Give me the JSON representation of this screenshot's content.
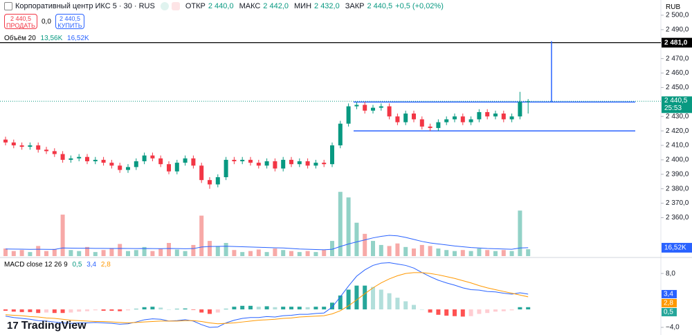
{
  "header": {
    "symbol": "Корпоративный центр ИКС 5 · 30 · RUS",
    "ohlc": [
      {
        "label": "ОТКР",
        "value": "2 440,0"
      },
      {
        "label": "МАКС",
        "value": "2 442,0"
      },
      {
        "label": "МИН",
        "value": "2 432,0"
      },
      {
        "label": "ЗАКР",
        "value": "2 440,5"
      }
    ],
    "change": "+0,5 (+0,02%)",
    "currency": "RUB"
  },
  "trade": {
    "sell_price": "2 440,5",
    "sell_label": "ПРОДАТЬ",
    "spread": "0,0",
    "buy_price": "2 440,5",
    "buy_label": "КУПИТЬ"
  },
  "branding": "TradingView",
  "chart_data": [
    {
      "type": "candlestick",
      "up_color": "#089981",
      "down_color": "#f23645",
      "open": [
        2414,
        2412,
        2410,
        2409,
        2410,
        2407,
        2406,
        2404,
        2400,
        2401,
        2402,
        2399,
        2400,
        2398,
        2396,
        2393,
        2395,
        2399,
        2403,
        2401,
        2397,
        2392,
        2398,
        2401,
        2396,
        2386,
        2383,
        2388,
        2400,
        2399,
        2400,
        2398,
        2396,
        2399,
        2394,
        2400,
        2397,
        2399,
        2396,
        2398,
        2397,
        2410,
        2425,
        2437,
        2438,
        2434,
        2436,
        2437,
        2430,
        2426,
        2432,
        2428,
        2423,
        2422,
        2426,
        2428,
        2430,
        2426,
        2428,
        2433,
        2430,
        2432,
        2428,
        2430,
        2440
      ],
      "high": [
        2416,
        2414,
        2412,
        2412,
        2412,
        2409,
        2408,
        2406,
        2403,
        2404,
        2404,
        2402,
        2402,
        2400,
        2398,
        2397,
        2401,
        2405,
        2405,
        2403,
        2399,
        2400,
        2403,
        2403,
        2398,
        2388,
        2390,
        2402,
        2402,
        2402,
        2402,
        2400,
        2401,
        2401,
        2402,
        2402,
        2401,
        2401,
        2400,
        2400,
        2412,
        2427,
        2439,
        2440,
        2440,
        2438,
        2439,
        2439,
        2432,
        2434,
        2434,
        2430,
        2425,
        2428,
        2430,
        2432,
        2432,
        2430,
        2435,
        2435,
        2434,
        2434,
        2432,
        2447,
        2442
      ],
      "low": [
        2410,
        2408,
        2407,
        2407,
        2405,
        2404,
        2402,
        2398,
        2398,
        2399,
        2397,
        2397,
        2396,
        2394,
        2391,
        2391,
        2393,
        2397,
        2399,
        2395,
        2390,
        2390,
        2396,
        2394,
        2384,
        2380,
        2381,
        2386,
        2397,
        2397,
        2396,
        2394,
        2394,
        2392,
        2392,
        2395,
        2395,
        2394,
        2394,
        2395,
        2395,
        2408,
        2423,
        2435,
        2432,
        2432,
        2434,
        2428,
        2424,
        2424,
        2426,
        2421,
        2420,
        2420,
        2424,
        2426,
        2424,
        2424,
        2426,
        2428,
        2428,
        2426,
        2426,
        2428,
        2432
      ],
      "close": [
        2412,
        2410,
        2409,
        2410,
        2407,
        2406,
        2404,
        2400,
        2401,
        2402,
        2399,
        2400,
        2398,
        2396,
        2393,
        2395,
        2399,
        2403,
        2401,
        2397,
        2392,
        2398,
        2401,
        2396,
        2386,
        2383,
        2388,
        2400,
        2399,
        2400,
        2398,
        2396,
        2399,
        2394,
        2400,
        2397,
        2399,
        2396,
        2398,
        2397,
        2410,
        2425,
        2437,
        2438,
        2434,
        2436,
        2437,
        2430,
        2426,
        2432,
        2428,
        2423,
        2422,
        2426,
        2428,
        2430,
        2426,
        2428,
        2433,
        2430,
        2432,
        2428,
        2430,
        2440,
        2440.5
      ],
      "ylim": [
        2334.4,
        2510.5
      ],
      "yticks": [
        {
          "value": 2500,
          "label": "2 500,0"
        },
        {
          "value": 2490,
          "label": "2 490,0"
        },
        {
          "value": 2470,
          "label": "2 470,0"
        },
        {
          "value": 2460,
          "label": "2 460,0"
        },
        {
          "value": 2450,
          "label": "2 450,0"
        },
        {
          "value": 2430,
          "label": "2 430,0"
        },
        {
          "value": 2420,
          "label": "2 420,0"
        },
        {
          "value": 2410,
          "label": "2 410,0"
        },
        {
          "value": 2400,
          "label": "2 400,0"
        },
        {
          "value": 2390,
          "label": "2 390,0"
        },
        {
          "value": 2380,
          "label": "2 380,0"
        },
        {
          "value": 2370,
          "label": "2 370,0"
        },
        {
          "value": 2360,
          "label": "2 360,0"
        }
      ],
      "price_line": {
        "value": 2440.5,
        "label": "2 440,5",
        "timer": "25:53"
      },
      "horizontal_line": {
        "value": 2481,
        "label": "2 481,0",
        "color": "#000000"
      },
      "trend_lines": [
        2440,
        2420
      ],
      "vertical_line": [
        2482,
        2440
      ],
      "drawing_color": "#2962ff"
    },
    {
      "type": "bar",
      "title": "Объём 20",
      "value_label": "13,56K",
      "ma_label": "16,52K",
      "ma_color": "#2962ff",
      "up_color": "#92d2c7",
      "down_color": "#f7a9a7",
      "values": [
        15000,
        10000,
        12000,
        8000,
        20000,
        10000,
        14000,
        82000,
        12000,
        10000,
        18000,
        8000,
        12000,
        16000,
        24000,
        10000,
        12000,
        18000,
        10000,
        15000,
        26000,
        13000,
        10000,
        22000,
        80000,
        30000,
        20000,
        26000,
        12000,
        8000,
        10000,
        13000,
        8000,
        15000,
        12000,
        10000,
        8000,
        10000,
        8000,
        12000,
        30000,
        127000,
        116000,
        66000,
        44000,
        30000,
        22000,
        20000,
        25000,
        18000,
        15000,
        22000,
        20000,
        15000,
        12000,
        10000,
        12000,
        10000,
        15000,
        12000,
        10000,
        12000,
        10000,
        90000,
        13560
      ],
      "ma": [
        14000,
        13800,
        13600,
        13400,
        13500,
        13300,
        13200,
        16000,
        15800,
        15600,
        15500,
        15300,
        15200,
        15100,
        15300,
        15000,
        14800,
        15000,
        14800,
        14700,
        15000,
        14800,
        14500,
        14800,
        18000,
        19000,
        19200,
        19500,
        19000,
        18500,
        18000,
        17500,
        17000,
        16500,
        16000,
        15000,
        14000,
        13500,
        13000,
        12500,
        13500,
        19000,
        24000,
        28000,
        32000,
        36000,
        39000,
        41000,
        40000,
        37000,
        33000,
        29000,
        26000,
        24000,
        22000,
        20000,
        18500,
        17000,
        16000,
        15000,
        14500,
        14000,
        13500,
        16000,
        16520
      ],
      "ylim": [
        0,
        130000
      ]
    },
    {
      "type": "macd",
      "title": "MACD close 12 26 9",
      "hist_label": "0,5",
      "macd_label": "3,4",
      "signal_label": "2,8",
      "macd_color": "#2962ff",
      "signal_color": "#ff9800",
      "histogram": [
        -0.3,
        -0.5,
        -0.6,
        -0.6,
        -0.8,
        -0.7,
        -0.8,
        -0.8,
        -0.7,
        -0.5,
        -0.4,
        -0.2,
        -0.3,
        -0.3,
        -0.4,
        -0.2,
        0.1,
        0.5,
        0.6,
        0.4,
        0,
        0.1,
        0.2,
        -0.1,
        -0.7,
        -1.0,
        -0.7,
        0.1,
        0.6,
        0.8,
        0.8,
        0.6,
        0.7,
        0.5,
        0.6,
        0.6,
        0.6,
        0.5,
        0.6,
        0.6,
        1.5,
        3.1,
        4.4,
        5.3,
        5.3,
        5.0,
        4.4,
        3.6,
        2.6,
        1.8,
        1.0,
        0,
        -0.7,
        -1.2,
        -1.4,
        -1.5,
        -1.6,
        -1.5,
        -1.0,
        -0.8,
        -0.5,
        -0.4,
        -0.2,
        0.5,
        0.5
      ],
      "macd": [
        -1.5,
        -1.8,
        -2.0,
        -2.2,
        -2.5,
        -2.6,
        -2.8,
        -3.0,
        -3.1,
        -3.0,
        -3.0,
        -2.9,
        -3.0,
        -3.1,
        -3.3,
        -3.2,
        -2.8,
        -2.3,
        -2.1,
        -2.2,
        -2.6,
        -2.5,
        -2.3,
        -2.6,
        -3.4,
        -4.0,
        -3.9,
        -3.0,
        -2.4,
        -2.0,
        -1.8,
        -1.8,
        -1.6,
        -1.7,
        -1.4,
        -1.3,
        -1.1,
        -1.1,
        -0.9,
        -0.8,
        0.5,
        2.8,
        5.2,
        7.4,
        8.8,
        9.8,
        10.3,
        10.4,
        10.1,
        9.8,
        9.2,
        8.2,
        7.3,
        6.5,
        5.9,
        5.4,
        4.8,
        4.4,
        4.3,
        4.0,
        3.9,
        3.6,
        3.4,
        3.7,
        3.4
      ],
      "signal": [
        -1.2,
        -1.3,
        -1.4,
        -1.6,
        -1.7,
        -1.9,
        -2.0,
        -2.2,
        -2.4,
        -2.5,
        -2.6,
        -2.7,
        -2.7,
        -2.8,
        -2.9,
        -3.0,
        -2.9,
        -2.8,
        -2.7,
        -2.6,
        -2.6,
        -2.6,
        -2.5,
        -2.5,
        -2.7,
        -3.0,
        -3.2,
        -3.1,
        -3.0,
        -2.8,
        -2.6,
        -2.4,
        -2.3,
        -2.2,
        -2.0,
        -1.9,
        -1.7,
        -1.6,
        -1.5,
        -1.4,
        -1.0,
        -0.3,
        0.8,
        2.1,
        3.5,
        4.8,
        5.9,
        6.8,
        7.5,
        8.0,
        8.2,
        8.2,
        8.0,
        7.7,
        7.3,
        6.9,
        6.4,
        5.9,
        5.3,
        4.8,
        4.4,
        4.0,
        3.6,
        3.2,
        2.8
      ],
      "ylim": [
        -5.7,
        11.1
      ],
      "yticks": [
        {
          "value": 8,
          "label": "8,0"
        },
        {
          "value": -4,
          "label": "−4,0"
        }
      ]
    }
  ]
}
